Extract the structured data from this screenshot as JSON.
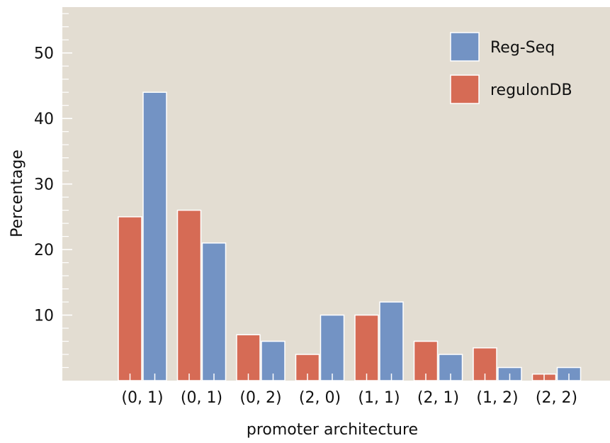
{
  "chart_data": {
    "type": "bar",
    "xlabel": "promoter architecture",
    "ylabel": "Percentage",
    "categories": [
      "(0, 1)",
      "(0, 1)",
      "(0, 2)",
      "(2, 0)",
      "(1, 1)",
      "(2, 1)",
      "(1, 2)",
      "(2, 2)"
    ],
    "series": [
      {
        "name": "regulonDB",
        "color": "#d66b55",
        "values": [
          25,
          26,
          7,
          4,
          10,
          6,
          5,
          1
        ]
      },
      {
        "name": "Reg-Seq",
        "color": "#7393c4",
        "values": [
          44,
          21,
          6,
          10,
          12,
          4,
          2,
          2
        ]
      }
    ],
    "ylim": [
      0,
      57
    ],
    "yticks": [
      10,
      20,
      30,
      40,
      50
    ],
    "grid": false,
    "legend_position": "top-right",
    "legend_order": [
      "Reg-Seq",
      "regulonDB"
    ],
    "background": "#e3ddd2"
  }
}
